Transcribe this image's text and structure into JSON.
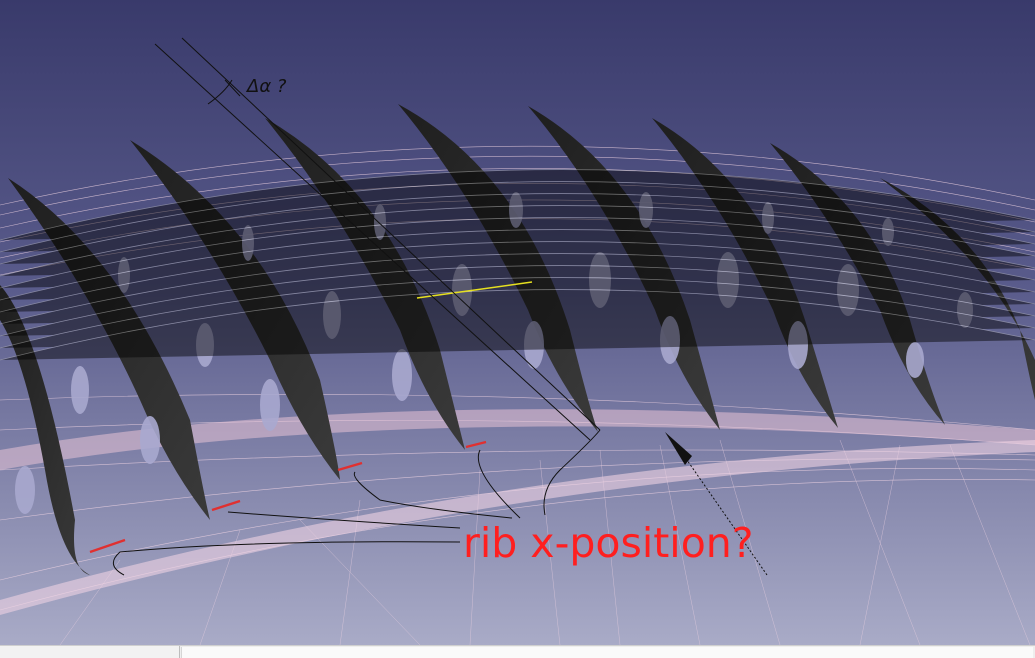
{
  "viewport": {
    "name": "3d-view",
    "background_top": "#3a3b6c",
    "background_bottom": "#a8aac6",
    "wireframe_color": "#f2d4e4",
    "rib_color": "#2a2a2a"
  },
  "annotations": {
    "rib_question": "rib x-position?",
    "angle_question": "Δα ?",
    "annotation_color": "#ff1f1f",
    "marker_color": "#e03030",
    "highlight_line_color": "#e6e020"
  },
  "statusbar": {
    "left_text": "",
    "right_text": ""
  }
}
